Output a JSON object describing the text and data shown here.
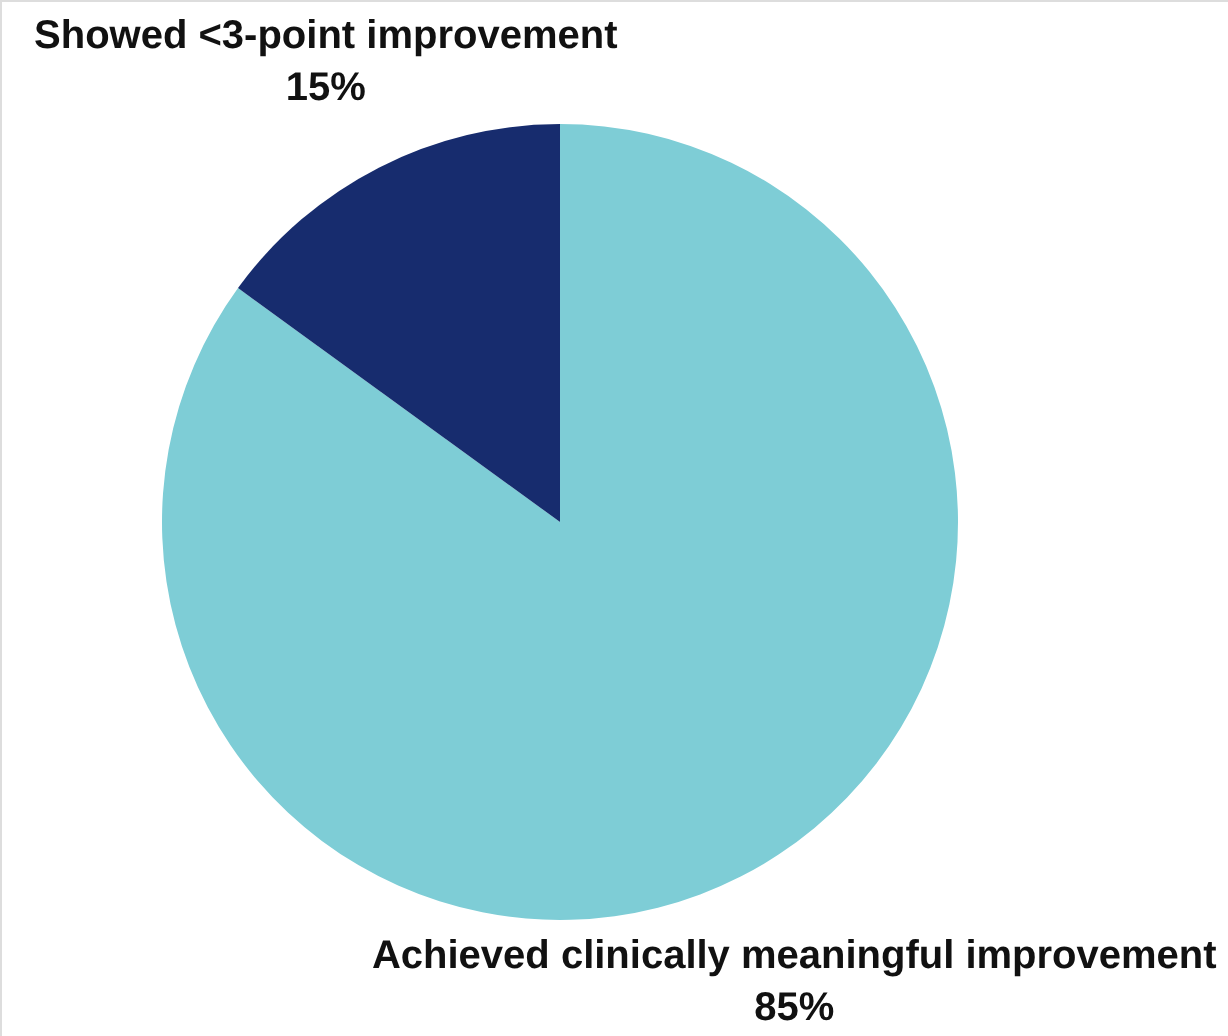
{
  "chart_data": {
    "type": "pie",
    "categories": [
      "Achieved clinically meaningful improvement",
      "Showed <3-point improvement"
    ],
    "values": [
      85,
      15
    ],
    "colors": [
      "#7ecdd6",
      "#172c6e"
    ],
    "value_labels": [
      "85%",
      "15%"
    ]
  }
}
